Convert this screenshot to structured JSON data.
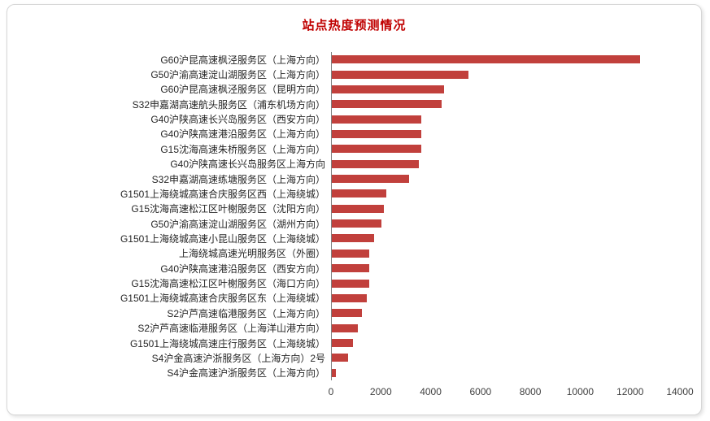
{
  "chart_data": {
    "type": "bar",
    "orientation": "horizontal",
    "title": "站点热度预测情况",
    "categories": [
      "G60沪昆高速枫泾服务区（上海方向）",
      "G50沪渝高速淀山湖服务区（上海方向）",
      "G60沪昆高速枫泾服务区（昆明方向）",
      "S32申嘉湖高速航头服务区（浦东机场方向）",
      "G40沪陕高速长兴岛服务区（西安方向）",
      "G40沪陕高速港沿服务区（上海方向）",
      "G15沈海高速朱桥服务区（上海方向）",
      "G40沪陕高速长兴岛服务区上海方向",
      "S32申嘉湖高速练塘服务区（上海方向）",
      "G1501上海绕城高速合庆服务区西（上海绕城）",
      "G15沈海高速松江区叶榭服务区（沈阳方向）",
      "G50沪渝高速淀山湖服务区（湖州方向）",
      "G1501上海绕城高速小昆山服务区（上海绕城）",
      "上海绕城高速光明服务区（外圈）",
      "G40沪陕高速港沿服务区（西安方向）",
      "G15沈海高速松江区叶榭服务区（海口方向）",
      "G1501上海绕城高速合庆服务区东（上海绕城）",
      "S2沪芦高速临港服务区（上海方向）",
      "S2沪芦高速临港服务区（上海洋山港方向）",
      "G1501上海绕城高速庄行服务区（上海绕城）",
      "S4沪金高速沪浙服务区（上海方向）2号",
      "S4沪金高速沪浙服务区（上海方向）"
    ],
    "values": [
      12400,
      5500,
      4500,
      4400,
      3600,
      3600,
      3600,
      3500,
      3100,
      2200,
      2100,
      2000,
      1700,
      1500,
      1500,
      1500,
      1400,
      1200,
      1050,
      850,
      650,
      160
    ],
    "xlim": [
      0,
      14000
    ],
    "xticks": [
      0,
      2000,
      4000,
      6000,
      8000,
      10000,
      12000,
      14000
    ],
    "bar_color": "#c1403c",
    "title_color": "#c00000",
    "axis_line_color": "#7f7f7f",
    "grid": false,
    "legend": "none",
    "xlabel": "",
    "ylabel": ""
  }
}
